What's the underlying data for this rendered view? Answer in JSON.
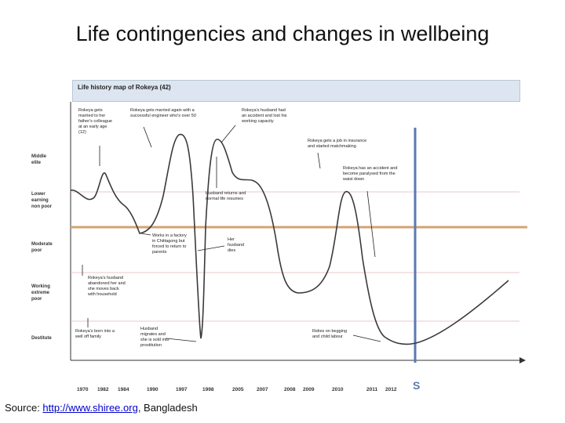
{
  "title": "Life contingencies and changes in wellbeing",
  "map_title": "Life history map of Rokeya (42)",
  "wellbeing_levels": [
    {
      "id": "middle-elite",
      "label": "Middle\nelite"
    },
    {
      "id": "lower-earning-non-poor",
      "label": "Lower\nearning\nnon poor"
    },
    {
      "id": "moderate-poor",
      "label": "Moderate\npoor"
    },
    {
      "id": "working-extreme-poor",
      "label": "Working\nextreme\npoor"
    },
    {
      "id": "destitute",
      "label": "Destitute"
    }
  ],
  "years": [
    "1970",
    "1982",
    "1984",
    "1990",
    "1997",
    "1998",
    "2005",
    "2007",
    "2008",
    "2009",
    "2010",
    "2011",
    "2012"
  ],
  "annotations": [
    {
      "id": "married",
      "text": "Rokeya      gets\nmarried   to   her\nfather's colleague\nat   an   early   age\n(12)"
    },
    {
      "id": "married-again",
      "text": "Rokeya gets married again with a\nsuccessful engineer who's over 50"
    },
    {
      "id": "husband-accident",
      "text": "Rokeya's   husband   had\nan accident and lost his\nworking capacity"
    },
    {
      "id": "job-insurance",
      "text": "Rokeya gets a job in insurance\nand started matchmaking"
    },
    {
      "id": "rokeya-accident",
      "text": "Rokeya has an accident and\nbecome paralysed from the\nwaist down"
    },
    {
      "id": "husband-returns",
      "text": "Husband returns and\nnormal life resumes"
    },
    {
      "id": "factory",
      "text": "Works in a factory\nin Chittagong but\nforced to return to\nparents"
    },
    {
      "id": "husband-dies",
      "text": "Her\nhusband\ndies"
    },
    {
      "id": "abandoned",
      "text": "Rokeya's   husband\nabandoned her and\nshe   moves   back\nwith household"
    },
    {
      "id": "born",
      "text": "Rokeya's born into a\nwell off family"
    },
    {
      "id": "husband-migrates",
      "text": "Husband\nmigrates and\nshe is sold into\nprostitution"
    },
    {
      "id": "begging",
      "text": "Relies   on   begging\nand child labour"
    }
  ],
  "marker_label": "S",
  "source": {
    "prefix": "Source: ",
    "link": "http://www.shiree.org",
    "suffix": ", Bangladesh"
  },
  "colors": {
    "trajectory": "#3a3a3a",
    "poverty_line": "#d4a373",
    "marker_line": "#5b7ab0",
    "band_line": "#e3b8b8"
  }
}
